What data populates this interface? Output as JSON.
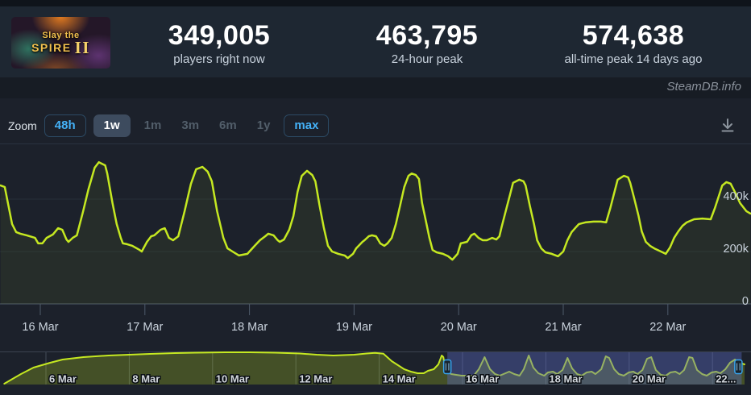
{
  "header": {
    "game_title": "Slay the Spire II",
    "capsule": {
      "line1": "Slay the",
      "line2": "SPIRE",
      "numeral": "II"
    },
    "stats": [
      {
        "value": "349,005",
        "label": "players right now"
      },
      {
        "value": "463,795",
        "label": "24-hour peak"
      },
      {
        "value": "574,638",
        "label": "all-time peak 14 days ago"
      }
    ],
    "watermark": "SteamDB.info"
  },
  "toolbar": {
    "zoom_label": "Zoom",
    "options": [
      {
        "label": "48h",
        "state": "outline"
      },
      {
        "label": "1w",
        "state": "active"
      },
      {
        "label": "1m",
        "state": "disabled"
      },
      {
        "label": "3m",
        "state": "disabled"
      },
      {
        "label": "6m",
        "state": "disabled"
      },
      {
        "label": "1y",
        "state": "disabled"
      },
      {
        "label": "max",
        "state": "outline"
      }
    ],
    "download_icon": "download-icon"
  },
  "chart_data": {
    "type": "line",
    "series_name": "Players",
    "unit": "players (thousands)",
    "legend": "none",
    "grid": "horizontal",
    "y_axis_side": "right",
    "ylim": [
      0,
      560
    ],
    "y_ticks": [
      {
        "v": 0,
        "label": "0"
      },
      {
        "v": 200,
        "label": "200k"
      },
      {
        "v": 400,
        "label": "400k"
      }
    ],
    "x_ticks": [
      {
        "t": 0,
        "label": "16 Mar"
      },
      {
        "t": 1,
        "label": "17 Mar"
      },
      {
        "t": 2,
        "label": "18 Mar"
      },
      {
        "t": 3,
        "label": "19 Mar"
      },
      {
        "t": 4,
        "label": "20 Mar"
      },
      {
        "t": 5,
        "label": "21 Mar"
      },
      {
        "t": 6,
        "label": "22 Mar"
      }
    ],
    "main_points": [
      [
        -0.38,
        452
      ],
      [
        -0.34,
        446
      ],
      [
        -0.27,
        305
      ],
      [
        -0.23,
        274
      ],
      [
        -0.19,
        268
      ],
      [
        -0.13,
        262
      ],
      [
        -0.05,
        252
      ],
      [
        -0.02,
        231
      ],
      [
        0.02,
        231
      ],
      [
        0.06,
        252
      ],
      [
        0.12,
        265
      ],
      [
        0.17,
        289
      ],
      [
        0.21,
        283
      ],
      [
        0.25,
        246
      ],
      [
        0.27,
        237
      ],
      [
        0.31,
        252
      ],
      [
        0.35,
        262
      ],
      [
        0.41,
        354
      ],
      [
        0.46,
        437
      ],
      [
        0.52,
        520
      ],
      [
        0.56,
        541
      ],
      [
        0.62,
        529
      ],
      [
        0.64,
        498
      ],
      [
        0.69,
        385
      ],
      [
        0.73,
        305
      ],
      [
        0.77,
        252
      ],
      [
        0.79,
        231
      ],
      [
        0.83,
        228
      ],
      [
        0.88,
        222
      ],
      [
        0.95,
        206
      ],
      [
        0.97,
        200
      ],
      [
        1.02,
        237
      ],
      [
        1.06,
        258
      ],
      [
        1.09,
        262
      ],
      [
        1.15,
        283
      ],
      [
        1.19,
        289
      ],
      [
        1.23,
        252
      ],
      [
        1.27,
        243
      ],
      [
        1.32,
        258
      ],
      [
        1.38,
        354
      ],
      [
        1.44,
        458
      ],
      [
        1.49,
        514
      ],
      [
        1.55,
        523
      ],
      [
        1.6,
        505
      ],
      [
        1.64,
        468
      ],
      [
        1.69,
        354
      ],
      [
        1.75,
        252
      ],
      [
        1.79,
        212
      ],
      [
        1.85,
        197
      ],
      [
        1.9,
        185
      ],
      [
        1.98,
        191
      ],
      [
        2.0,
        200
      ],
      [
        2.05,
        222
      ],
      [
        2.1,
        243
      ],
      [
        2.15,
        258
      ],
      [
        2.18,
        268
      ],
      [
        2.23,
        262
      ],
      [
        2.27,
        243
      ],
      [
        2.29,
        237
      ],
      [
        2.33,
        246
      ],
      [
        2.38,
        283
      ],
      [
        2.42,
        335
      ],
      [
        2.46,
        428
      ],
      [
        2.5,
        489
      ],
      [
        2.55,
        508
      ],
      [
        2.6,
        492
      ],
      [
        2.63,
        468
      ],
      [
        2.67,
        375
      ],
      [
        2.71,
        292
      ],
      [
        2.75,
        222
      ],
      [
        2.79,
        200
      ],
      [
        2.85,
        191
      ],
      [
        2.91,
        185
      ],
      [
        2.94,
        175
      ],
      [
        2.99,
        191
      ],
      [
        3.02,
        212
      ],
      [
        3.08,
        237
      ],
      [
        3.1,
        243
      ],
      [
        3.14,
        258
      ],
      [
        3.17,
        262
      ],
      [
        3.21,
        258
      ],
      [
        3.25,
        231
      ],
      [
        3.29,
        222
      ],
      [
        3.32,
        231
      ],
      [
        3.36,
        252
      ],
      [
        3.4,
        305
      ],
      [
        3.44,
        375
      ],
      [
        3.48,
        446
      ],
      [
        3.52,
        489
      ],
      [
        3.55,
        498
      ],
      [
        3.59,
        492
      ],
      [
        3.62,
        477
      ],
      [
        3.65,
        385
      ],
      [
        3.68,
        329
      ],
      [
        3.72,
        252
      ],
      [
        3.75,
        206
      ],
      [
        3.79,
        197
      ],
      [
        3.85,
        191
      ],
      [
        3.9,
        182
      ],
      [
        3.94,
        169
      ],
      [
        3.99,
        191
      ],
      [
        4.02,
        231
      ],
      [
        4.08,
        237
      ],
      [
        4.12,
        262
      ],
      [
        4.15,
        268
      ],
      [
        4.19,
        252
      ],
      [
        4.23,
        243
      ],
      [
        4.27,
        243
      ],
      [
        4.32,
        252
      ],
      [
        4.36,
        246
      ],
      [
        4.39,
        258
      ],
      [
        4.41,
        292
      ],
      [
        4.45,
        354
      ],
      [
        4.49,
        415
      ],
      [
        4.52,
        462
      ],
      [
        4.58,
        474
      ],
      [
        4.62,
        468
      ],
      [
        4.64,
        452
      ],
      [
        4.68,
        375
      ],
      [
        4.72,
        305
      ],
      [
        4.75,
        243
      ],
      [
        4.79,
        212
      ],
      [
        4.83,
        197
      ],
      [
        4.89,
        191
      ],
      [
        4.95,
        182
      ],
      [
        5.0,
        200
      ],
      [
        5.04,
        243
      ],
      [
        5.08,
        274
      ],
      [
        5.12,
        292
      ],
      [
        5.15,
        305
      ],
      [
        5.21,
        311
      ],
      [
        5.29,
        314
      ],
      [
        5.36,
        314
      ],
      [
        5.41,
        311
      ],
      [
        5.45,
        366
      ],
      [
        5.49,
        428
      ],
      [
        5.52,
        474
      ],
      [
        5.58,
        489
      ],
      [
        5.62,
        483
      ],
      [
        5.64,
        462
      ],
      [
        5.68,
        400
      ],
      [
        5.72,
        335
      ],
      [
        5.75,
        277
      ],
      [
        5.79,
        237
      ],
      [
        5.83,
        222
      ],
      [
        5.87,
        212
      ],
      [
        5.95,
        197
      ],
      [
        5.98,
        191
      ],
      [
        6.02,
        215
      ],
      [
        6.06,
        252
      ],
      [
        6.1,
        277
      ],
      [
        6.14,
        298
      ],
      [
        6.18,
        311
      ],
      [
        6.25,
        323
      ],
      [
        6.33,
        326
      ],
      [
        6.41,
        323
      ],
      [
        6.45,
        366
      ],
      [
        6.49,
        415
      ],
      [
        6.52,
        452
      ],
      [
        6.56,
        465
      ],
      [
        6.6,
        459
      ],
      [
        6.64,
        428
      ],
      [
        6.69,
        385
      ],
      [
        6.75,
        354
      ],
      [
        6.79,
        345
      ]
    ],
    "navigator": {
      "x_ticks": [
        {
          "t": -10,
          "label": "6 Mar"
        },
        {
          "t": -8,
          "label": "8 Mar"
        },
        {
          "t": -6,
          "label": "10 Mar"
        },
        {
          "t": -4,
          "label": "12 Mar"
        },
        {
          "t": -2,
          "label": "14 Mar"
        },
        {
          "t": 0,
          "label": "16 Mar"
        },
        {
          "t": 2,
          "label": "18 Mar"
        },
        {
          "t": 4,
          "label": "20 Mar"
        },
        {
          "t": 6,
          "label": "22..."
        }
      ],
      "points": [
        [
          -11.0,
          14
        ],
        [
          -10.8,
          98
        ],
        [
          -10.6,
          182
        ],
        [
          -10.3,
          294
        ],
        [
          -9.9,
          378
        ],
        [
          -9.6,
          434
        ],
        [
          -9.1,
          476
        ],
        [
          -8.5,
          504
        ],
        [
          -8.0,
          518
        ],
        [
          -7.5,
          532
        ],
        [
          -6.9,
          546
        ],
        [
          -6.4,
          553
        ],
        [
          -5.7,
          560
        ],
        [
          -5.1,
          560
        ],
        [
          -4.5,
          553
        ],
        [
          -3.9,
          539
        ],
        [
          -3.5,
          518
        ],
        [
          -3.1,
          504
        ],
        [
          -2.6,
          518
        ],
        [
          -2.3,
          539
        ],
        [
          -2.1,
          550
        ],
        [
          -1.9,
          535
        ],
        [
          -1.7,
          406
        ],
        [
          -1.55,
          336
        ],
        [
          -1.4,
          266
        ],
        [
          -1.24,
          224
        ],
        [
          -1.08,
          196
        ],
        [
          -0.93,
          196
        ],
        [
          -0.83,
          238
        ],
        [
          -0.69,
          266
        ],
        [
          -0.58,
          350
        ],
        [
          -0.5,
          504
        ],
        [
          -0.46,
          476
        ],
        [
          -0.42,
          308
        ],
        [
          -0.38,
          224
        ],
        [
          -0.34,
          210
        ],
        [
          -0.27,
          182
        ],
        [
          -0.15,
          168
        ],
        [
          -0.02,
          154
        ],
        [
          0.27,
          154
        ],
        [
          0.39,
          266
        ],
        [
          0.53,
          476
        ],
        [
          0.66,
          266
        ],
        [
          0.78,
          182
        ],
        [
          0.89,
          154
        ],
        [
          1.03,
          196
        ],
        [
          1.12,
          224
        ],
        [
          1.24,
          182
        ],
        [
          1.37,
          154
        ],
        [
          1.47,
          266
        ],
        [
          1.59,
          504
        ],
        [
          1.7,
          294
        ],
        [
          1.82,
          196
        ],
        [
          1.96,
          154
        ],
        [
          2.05,
          210
        ],
        [
          2.17,
          224
        ],
        [
          2.27,
          182
        ],
        [
          2.4,
          252
        ],
        [
          2.52,
          462
        ],
        [
          2.63,
          280
        ],
        [
          2.75,
          182
        ],
        [
          2.86,
          154
        ],
        [
          2.98,
          210
        ],
        [
          3.1,
          224
        ],
        [
          3.19,
          182
        ],
        [
          3.33,
          266
        ],
        [
          3.44,
          490
        ],
        [
          3.52,
          462
        ],
        [
          3.64,
          266
        ],
        [
          3.75,
          182
        ],
        [
          3.87,
          154
        ],
        [
          3.99,
          210
        ],
        [
          4.1,
          224
        ],
        [
          4.2,
          182
        ],
        [
          4.32,
          252
        ],
        [
          4.43,
          448
        ],
        [
          4.53,
          476
        ],
        [
          4.64,
          252
        ],
        [
          4.76,
          168
        ],
        [
          4.88,
          154
        ],
        [
          4.99,
          210
        ],
        [
          5.11,
          224
        ],
        [
          5.21,
          182
        ],
        [
          5.32,
          252
        ],
        [
          5.44,
          476
        ],
        [
          5.52,
          462
        ],
        [
          5.63,
          252
        ],
        [
          5.75,
          182
        ],
        [
          5.86,
          154
        ],
        [
          5.98,
          210
        ],
        [
          6.09,
          224
        ],
        [
          6.19,
          196
        ],
        [
          6.31,
          266
        ],
        [
          6.42,
          378
        ],
        [
          6.54,
          434
        ],
        [
          6.65,
          378
        ],
        [
          6.77,
          350
        ]
      ],
      "selection": {
        "start_t": -0.365,
        "end_t": 6.7
      }
    },
    "colors": {
      "line": "#c5e821",
      "area_fill": "rgba(198,232,30,0.06)",
      "nav_area_fill": "rgba(198,232,30,0.24)",
      "grid": "#262e39",
      "zero_line": "#4e5a6a",
      "tick": "#4e5a6a",
      "axis_text": "#c9d2dc",
      "nav_grid": "#454d5a",
      "nav_mask": "rgba(88,103,189,0.42)",
      "handle_border": "#38a5ee",
      "handle_fill": "#18242f",
      "handle_grip": "#8fc0e0",
      "accent_blue": "#44b1f7"
    }
  }
}
